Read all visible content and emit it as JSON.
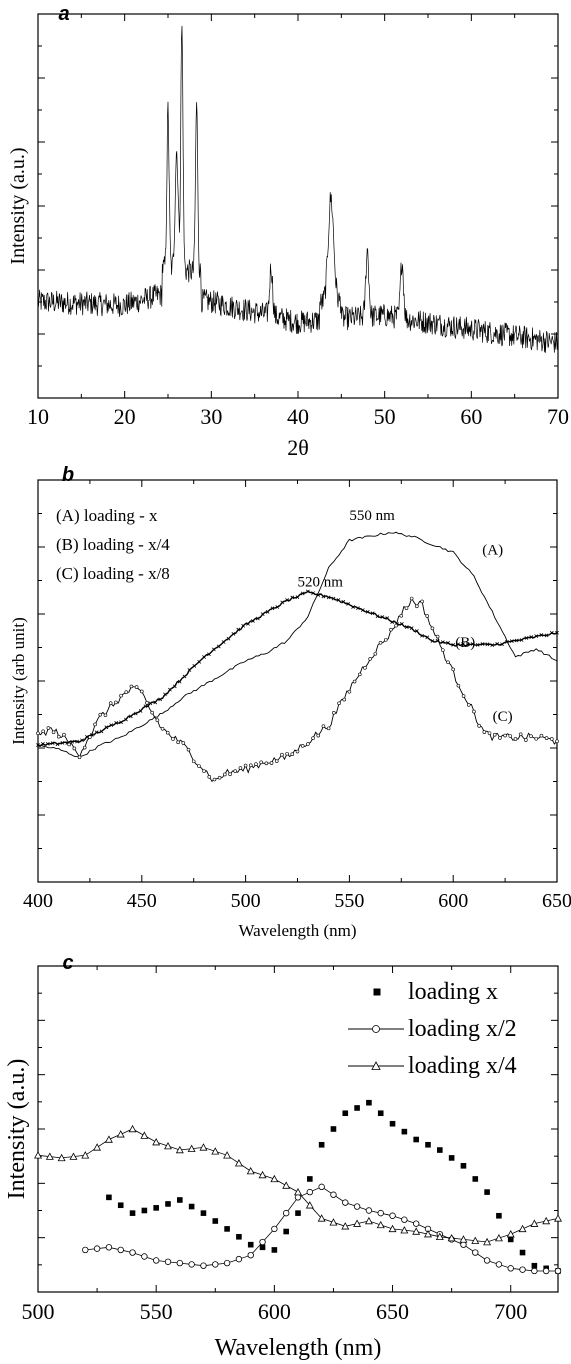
{
  "chart_data": [
    {
      "panel_label": "a",
      "type": "line",
      "xlabel": "2θ",
      "ylabel": "Intensity (a.u.)",
      "xlim": [
        10,
        70
      ],
      "xticks": [
        10,
        20,
        30,
        40,
        50,
        60,
        70
      ],
      "y_ticks_unlabeled": true,
      "series": [
        {
          "peaks": [
            {
              "x": 25.0,
              "y": 0.76
            },
            {
              "x": 26.0,
              "y": 0.64
            },
            {
              "x": 26.6,
              "y": 1.0
            },
            {
              "x": 28.3,
              "y": 0.78
            },
            {
              "x": 36.9,
              "y": 0.38
            },
            {
              "x": 43.8,
              "y": 0.53
            },
            {
              "x": 48.0,
              "y": 0.43
            },
            {
              "x": 52.0,
              "y": 0.4
            }
          ],
          "baseline": [
            {
              "x": 10,
              "y": 0.28
            },
            {
              "x": 20,
              "y": 0.27
            },
            {
              "x": 24,
              "y": 0.3
            },
            {
              "x": 30,
              "y": 0.28
            },
            {
              "x": 40,
              "y": 0.22
            },
            {
              "x": 50,
              "y": 0.24
            },
            {
              "x": 60,
              "y": 0.2
            },
            {
              "x": 70,
              "y": 0.16
            }
          ]
        }
      ]
    },
    {
      "panel_label": "b",
      "type": "line",
      "xlabel": "Wavelength (nm)",
      "ylabel": "Intensity (arb unit)",
      "xlim": [
        400,
        650
      ],
      "xticks": [
        400,
        450,
        500,
        550,
        600,
        650
      ],
      "y_ticks_unlabeled": true,
      "legend": [
        "(A) loading - x",
        "(B) loading - x/4",
        "(C) loading - x/8"
      ],
      "annotations": [
        "550 nm",
        "520 nm"
      ],
      "series": [
        {
          "name": "(A)",
          "x": [
            400,
            410,
            420,
            430,
            440,
            450,
            460,
            470,
            480,
            490,
            500,
            510,
            520,
            530,
            540,
            550,
            560,
            570,
            580,
            590,
            600,
            610,
            620,
            630,
            640,
            650
          ],
          "y": [
            0.34,
            0.33,
            0.31,
            0.34,
            0.36,
            0.39,
            0.42,
            0.46,
            0.49,
            0.52,
            0.55,
            0.57,
            0.6,
            0.66,
            0.78,
            0.85,
            0.86,
            0.87,
            0.86,
            0.84,
            0.82,
            0.76,
            0.66,
            0.56,
            0.58,
            0.55
          ]
        },
        {
          "name": "(B)",
          "x": [
            400,
            420,
            440,
            460,
            480,
            500,
            520,
            530,
            540,
            560,
            580,
            590,
            600,
            620,
            640,
            650
          ],
          "y": [
            0.34,
            0.35,
            0.4,
            0.46,
            0.56,
            0.64,
            0.7,
            0.72,
            0.71,
            0.67,
            0.63,
            0.6,
            0.59,
            0.59,
            0.61,
            0.62
          ]
        },
        {
          "name": "(C)",
          "x": [
            400,
            405,
            410,
            420,
            430,
            440,
            445,
            450,
            455,
            460,
            470,
            480,
            485,
            490,
            500,
            510,
            520,
            530,
            540,
            550,
            560,
            570,
            575,
            580,
            585,
            590,
            600,
            610,
            615,
            620,
            630,
            640,
            650
          ],
          "y": [
            0.36,
            0.38,
            0.37,
            0.32,
            0.41,
            0.46,
            0.48,
            0.47,
            0.42,
            0.38,
            0.34,
            0.28,
            0.25,
            0.27,
            0.28,
            0.3,
            0.31,
            0.35,
            0.39,
            0.48,
            0.56,
            0.62,
            0.67,
            0.7,
            0.69,
            0.63,
            0.52,
            0.42,
            0.37,
            0.36,
            0.36,
            0.36,
            0.35
          ]
        }
      ]
    },
    {
      "panel_label": "c",
      "type": "scatter",
      "xlabel": "Wavelength (nm)",
      "ylabel": "Intensity (a.u.)",
      "xlim": [
        500,
        720
      ],
      "xticks": [
        500,
        550,
        600,
        650,
        700
      ],
      "y_ticks_unlabeled": true,
      "legend": [
        "loading x",
        "loading x/2",
        "loading x/4"
      ],
      "series": [
        {
          "name": "loading x",
          "marker": "square",
          "x": [
            530,
            540,
            550,
            560,
            570,
            580,
            590,
            600,
            610,
            620,
            630,
            640,
            650,
            660,
            670,
            680,
            690,
            700,
            710,
            720
          ],
          "y": [
            0.18,
            0.15,
            0.16,
            0.175,
            0.15,
            0.12,
            0.09,
            0.08,
            0.15,
            0.28,
            0.34,
            0.36,
            0.32,
            0.29,
            0.27,
            0.24,
            0.19,
            0.1,
            0.05,
            0.04
          ]
        },
        {
          "name": "loading x/2",
          "marker": "circle",
          "x": [
            520,
            530,
            540,
            550,
            560,
            570,
            580,
            590,
            600,
            610,
            620,
            630,
            640,
            650,
            660,
            670,
            680,
            690,
            700,
            710,
            720
          ],
          "y": [
            0.08,
            0.085,
            0.075,
            0.06,
            0.055,
            0.05,
            0.055,
            0.07,
            0.12,
            0.18,
            0.2,
            0.17,
            0.155,
            0.145,
            0.13,
            0.11,
            0.09,
            0.06,
            0.045,
            0.04,
            0.04
          ]
        },
        {
          "name": "loading x/4",
          "marker": "triangle",
          "x": [
            500,
            510,
            520,
            530,
            540,
            550,
            560,
            570,
            580,
            590,
            600,
            610,
            620,
            630,
            640,
            650,
            660,
            670,
            680,
            690,
            700,
            710,
            720
          ],
          "y": [
            0.26,
            0.255,
            0.26,
            0.29,
            0.31,
            0.285,
            0.27,
            0.275,
            0.26,
            0.23,
            0.215,
            0.19,
            0.14,
            0.125,
            0.135,
            0.12,
            0.115,
            0.105,
            0.1,
            0.095,
            0.11,
            0.13,
            0.14
          ]
        }
      ]
    }
  ]
}
